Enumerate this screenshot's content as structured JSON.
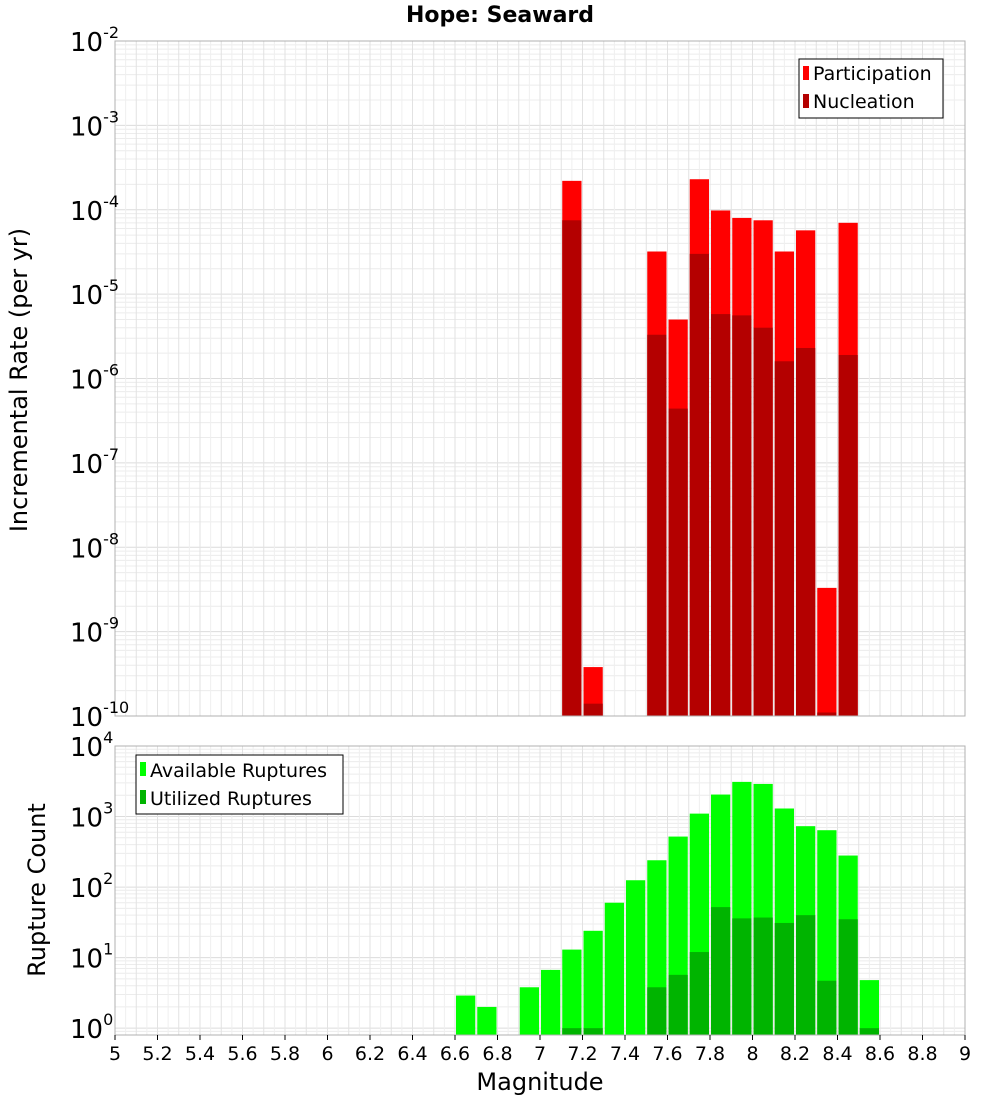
{
  "chart_data": [
    {
      "type": "bar",
      "title": "Hope: Seaward",
      "xlabel": "Magnitude",
      "ylabel": "Incremental Rate (per yr)",
      "yscale": "log",
      "ylim": [
        1e-10,
        0.01
      ],
      "xlim": [
        5,
        9
      ],
      "bin_width": 0.1,
      "legend_position": "top-right",
      "series": [
        {
          "name": "Participation",
          "color": "#ff0000",
          "x": [
            7.15,
            7.25,
            7.55,
            7.65,
            7.75,
            7.85,
            7.95,
            8.05,
            8.15,
            8.25,
            8.35,
            8.45
          ],
          "values": [
            0.00022,
            3.8e-10,
            3.2e-05,
            5e-06,
            0.00023,
            9.8e-05,
            8e-05,
            7.5e-05,
            3.2e-05,
            5.7e-05,
            3.3e-09,
            7e-05
          ]
        },
        {
          "name": "Nucleation",
          "color": "#b40000",
          "x": [
            7.15,
            7.25,
            7.55,
            7.65,
            7.75,
            7.85,
            7.95,
            8.05,
            8.15,
            8.25,
            8.35,
            8.45
          ],
          "values": [
            7.5e-05,
            1.4e-10,
            3.3e-06,
            4.4e-07,
            3e-05,
            5.8e-06,
            5.6e-06,
            4e-06,
            1.6e-06,
            2.3e-06,
            1.1e-10,
            1.9e-06
          ]
        }
      ]
    },
    {
      "type": "bar",
      "title": "",
      "xlabel": "Magnitude",
      "ylabel": "Rupture Count",
      "yscale": "log",
      "ylim": [
        0.8,
        10000
      ],
      "xlim": [
        5,
        9
      ],
      "bin_width": 0.1,
      "legend_position": "top-left",
      "series": [
        {
          "name": "Available Ruptures",
          "color": "#00ff00",
          "x": [
            6.65,
            6.75,
            6.95,
            7.05,
            7.15,
            7.25,
            7.35,
            7.45,
            7.55,
            7.65,
            7.75,
            7.85,
            7.95,
            8.05,
            8.15,
            8.25,
            8.35,
            8.45,
            8.55
          ],
          "values": [
            2.9,
            2.0,
            3.8,
            6.7,
            13,
            24,
            60,
            125,
            240,
            520,
            1100,
            2050,
            3100,
            2900,
            1300,
            730,
            640,
            280,
            4.8
          ]
        },
        {
          "name": "Utilized Ruptures",
          "color": "#00b400",
          "x": [
            7.15,
            7.25,
            7.55,
            7.65,
            7.75,
            7.85,
            7.95,
            8.05,
            8.15,
            8.25,
            8.35,
            8.45,
            8.55
          ],
          "values": [
            1,
            1,
            3.8,
            5.7,
            12,
            52,
            36,
            37,
            31,
            40,
            4.7,
            35,
            1
          ]
        }
      ]
    }
  ],
  "x_ticks": [
    "5",
    "5.2",
    "5.4",
    "5.6",
    "5.8",
    "6",
    "6.2",
    "6.4",
    "6.6",
    "6.8",
    "7",
    "7.2",
    "7.4",
    "7.6",
    "7.8",
    "8",
    "8.2",
    "8.4",
    "8.6",
    "8.8",
    "9"
  ],
  "top_y_ticks": [
    {
      "base": "10",
      "exp": "-10"
    },
    {
      "base": "10",
      "exp": "-9"
    },
    {
      "base": "10",
      "exp": "-8"
    },
    {
      "base": "10",
      "exp": "-7"
    },
    {
      "base": "10",
      "exp": "-6"
    },
    {
      "base": "10",
      "exp": "-5"
    },
    {
      "base": "10",
      "exp": "-4"
    },
    {
      "base": "10",
      "exp": "-3"
    },
    {
      "base": "10",
      "exp": "-2"
    }
  ],
  "bottom_y_ticks": [
    {
      "base": "10",
      "exp": "0"
    },
    {
      "base": "10",
      "exp": "1"
    },
    {
      "base": "10",
      "exp": "2"
    },
    {
      "base": "10",
      "exp": "3"
    },
    {
      "base": "10",
      "exp": "4"
    }
  ]
}
